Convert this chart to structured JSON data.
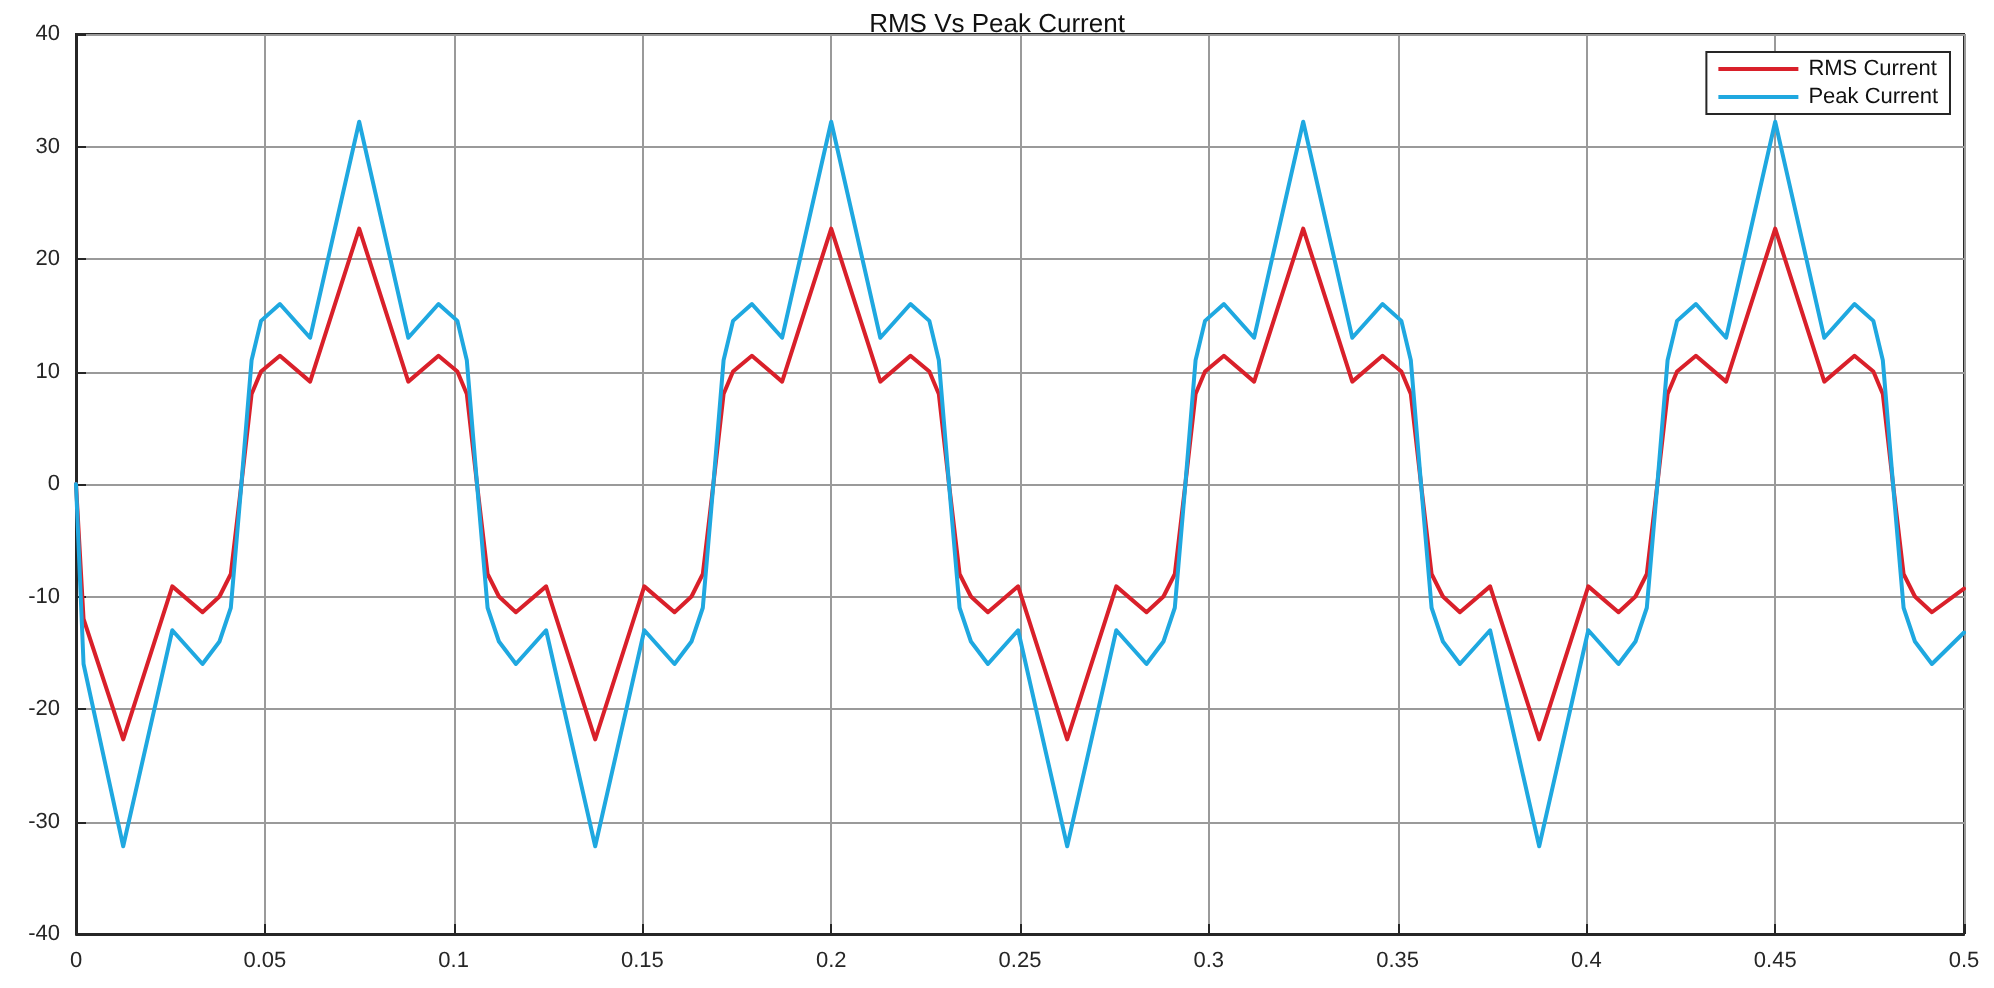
{
  "chart_data": {
    "type": "line",
    "title": "RMS Vs Peak Current",
    "x": [
      0,
      0.002,
      0.0125,
      0.0255,
      0.0335,
      0.038,
      0.041,
      0.0438,
      0.0465,
      0.049,
      0.054,
      0.062,
      0.075,
      0.088,
      0.096,
      0.101,
      0.1035,
      0.1062,
      0.109,
      0.112,
      0.1165,
      0.1245,
      0.1375,
      0.1505,
      0.1585,
      0.163,
      0.166,
      0.1688,
      0.1715,
      0.174,
      0.179,
      0.187,
      0.2,
      0.213,
      0.221,
      0.226,
      0.2285,
      0.2312,
      0.234,
      0.237,
      0.2415,
      0.2495,
      0.2625,
      0.2755,
      0.2835,
      0.288,
      0.291,
      0.2938,
      0.2965,
      0.299,
      0.304,
      0.312,
      0.325,
      0.338,
      0.346,
      0.351,
      0.3535,
      0.3562,
      0.359,
      0.362,
      0.3665,
      0.3745,
      0.3875,
      0.4005,
      0.4085,
      0.413,
      0.416,
      0.4188,
      0.4215,
      0.424,
      0.429,
      0.437,
      0.45,
      0.463,
      0.471,
      0.476,
      0.4785,
      0.4812,
      0.484,
      0.487,
      0.4915,
      0.5
    ],
    "series": [
      {
        "name": "RMS Current",
        "color": "#d9202a",
        "values": [
          0,
          -12,
          -22.7,
          -9.1,
          -11.4,
          -10,
          -8,
          0,
          8,
          10,
          11.4,
          9.1,
          22.7,
          9.1,
          11.4,
          10,
          8,
          0,
          -8,
          -10,
          -11.4,
          -9.1,
          -22.7,
          -9.1,
          -11.4,
          -10,
          -8,
          0,
          8,
          10,
          11.4,
          9.1,
          22.7,
          9.1,
          11.4,
          10,
          8,
          0,
          -8,
          -10,
          -11.4,
          -9.1,
          -22.7,
          -9.1,
          -11.4,
          -10,
          -8,
          0,
          8,
          10,
          11.4,
          9.1,
          22.7,
          9.1,
          11.4,
          10,
          8,
          0,
          -8,
          -10,
          -11.4,
          -9.1,
          -22.7,
          -9.1,
          -11.4,
          -10,
          -8,
          0,
          8,
          10,
          11.4,
          9.1,
          22.7,
          9.1,
          11.4,
          10,
          8,
          0,
          -8,
          -10,
          -11.4,
          -9.3
        ]
      },
      {
        "name": "Peak Current",
        "color": "#1fa8e0",
        "values": [
          0,
          -16,
          -32.2,
          -13,
          -16,
          -14,
          -11,
          0,
          11,
          14.5,
          16,
          13,
          32.2,
          13,
          16,
          14.5,
          11,
          0,
          -11,
          -14,
          -16,
          -13,
          -32.2,
          -13,
          -16,
          -14,
          -11,
          0,
          11,
          14.5,
          16,
          13,
          32.2,
          13,
          16,
          14.5,
          11,
          0,
          -11,
          -14,
          -16,
          -13,
          -32.2,
          -13,
          -16,
          -14,
          -11,
          0,
          11,
          14.5,
          16,
          13,
          32.2,
          13,
          16,
          14.5,
          11,
          0,
          -11,
          -14,
          -16,
          -13,
          -32.2,
          -13,
          -16,
          -14,
          -11,
          0,
          11,
          14.5,
          16,
          13,
          32.2,
          13,
          16,
          14.5,
          11,
          0,
          -11,
          -14,
          -16,
          -13.2
        ]
      }
    ],
    "xlim": [
      0,
      0.5
    ],
    "xticks": [
      0,
      0.05,
      0.1,
      0.15,
      0.2,
      0.25,
      0.3,
      0.35,
      0.4,
      0.45,
      0.5
    ],
    "ylim": [
      -40,
      40
    ],
    "yticks": [
      -40,
      -30,
      -20,
      -10,
      0,
      10,
      20,
      30,
      40
    ],
    "grid": true,
    "legend": "top right",
    "marker": "none",
    "line_style": "solid"
  }
}
